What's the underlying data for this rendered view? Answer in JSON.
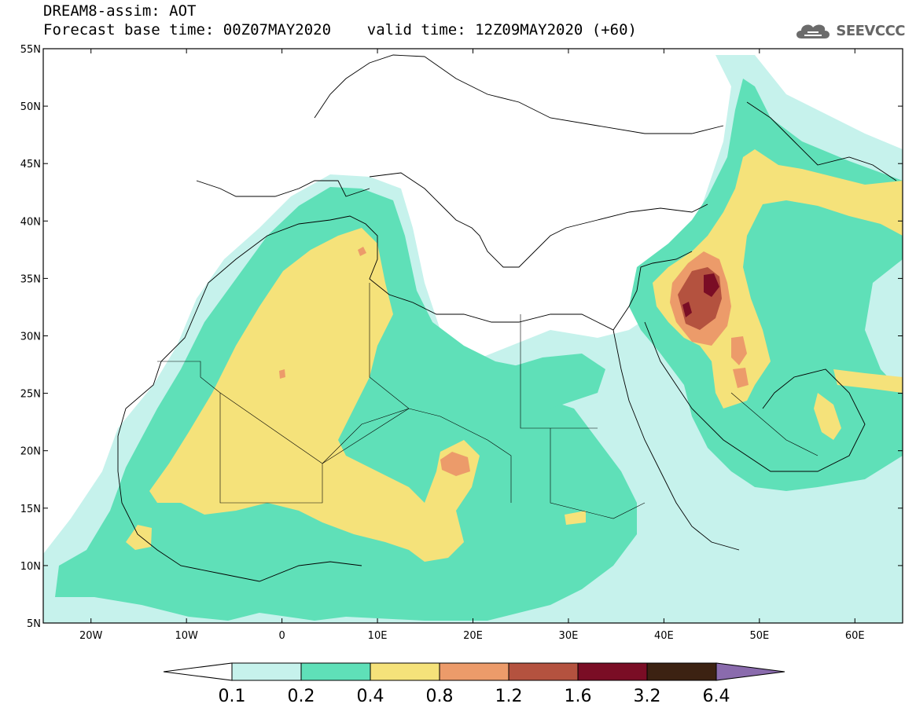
{
  "header": {
    "line1": "DREAM8-assim: AOT",
    "line2": "Forecast base time: 00Z07MAY2020    valid time: 12Z09MAY2020 (+60)"
  },
  "logo": {
    "text": "SEEVCCC",
    "icon": "cloud-icon"
  },
  "map": {
    "lon_range": [
      -25,
      65
    ],
    "lat_range": [
      5,
      55
    ],
    "y_ticks": [
      "55N",
      "50N",
      "45N",
      "40N",
      "35N",
      "30N",
      "25N",
      "20N",
      "15N",
      "10N",
      "5N"
    ],
    "x_ticks": [
      "20W",
      "10W",
      "0",
      "10E",
      "20E",
      "30E",
      "40E",
      "50E",
      "60E"
    ]
  },
  "colorbar": {
    "labels": [
      "0.1",
      "0.2",
      "0.4",
      "0.8",
      "1.2",
      "1.6",
      "3.2",
      "6.4"
    ],
    "colors": [
      "#ffffff",
      "#c6f2ec",
      "#5fe0b8",
      "#f5e27a",
      "#ec9b6a",
      "#b4523f",
      "#7a0d25",
      "#3c2212",
      "#8a6bad"
    ]
  },
  "palette": {
    "v1": "#c6f2ec",
    "v2": "#5fe0b8",
    "v3": "#f5e27a",
    "v4": "#ec9b6a",
    "v5": "#b4523f",
    "v6": "#7a0d25"
  }
}
